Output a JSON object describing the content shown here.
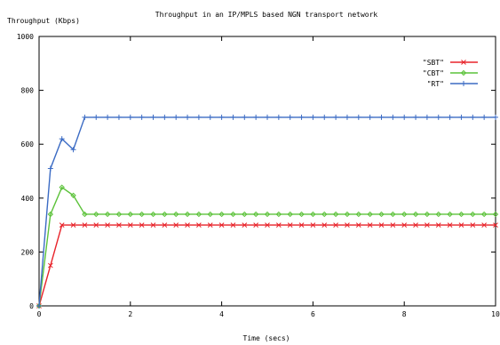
{
  "chart_data": {
    "type": "line",
    "title": "Throughput in an IP/MPLS based NGN transport network",
    "ylabel": "Throughput (Kbps)",
    "xlabel": "Time (secs)",
    "xlim": [
      0,
      10
    ],
    "ylim": [
      0,
      1000
    ],
    "x_ticks": [
      0,
      2,
      4,
      6,
      8,
      10
    ],
    "y_ticks": [
      0,
      200,
      400,
      600,
      800,
      1000
    ],
    "x_tick_labels": [
      "0",
      "2",
      "4",
      "6",
      "8",
      "10"
    ],
    "y_tick_labels": [
      "0",
      "200",
      "400",
      "600",
      "800",
      "1000"
    ],
    "grid": false,
    "legend_position": "top-right",
    "series": [
      {
        "name": "\"SBT\"",
        "color": "#e8232a",
        "marker": "x",
        "x": [
          0,
          0.25,
          0.5,
          0.75,
          1.0,
          1.25,
          1.5,
          1.75,
          2.0,
          2.25,
          2.5,
          2.75,
          3.0,
          3.25,
          3.5,
          3.75,
          4.0,
          4.25,
          4.5,
          4.75,
          5.0,
          5.25,
          5.5,
          5.75,
          6.0,
          6.25,
          6.5,
          6.75,
          7.0,
          7.25,
          7.5,
          7.75,
          8.0,
          8.25,
          8.5,
          8.75,
          9.0,
          9.25,
          9.5,
          9.75,
          10.0
        ],
        "y": [
          0,
          150,
          300,
          300,
          300,
          300,
          300,
          300,
          300,
          300,
          300,
          300,
          300,
          300,
          300,
          300,
          300,
          300,
          300,
          300,
          300,
          300,
          300,
          300,
          300,
          300,
          300,
          300,
          300,
          300,
          300,
          300,
          300,
          300,
          300,
          300,
          300,
          300,
          300,
          300,
          300
        ]
      },
      {
        "name": "\"CBT\"",
        "color": "#5cc23a",
        "marker": "diamond",
        "x": [
          0,
          0.25,
          0.5,
          0.75,
          1.0,
          1.25,
          1.5,
          1.75,
          2.0,
          2.25,
          2.5,
          2.75,
          3.0,
          3.25,
          3.5,
          3.75,
          4.0,
          4.25,
          4.5,
          4.75,
          5.0,
          5.25,
          5.5,
          5.75,
          6.0,
          6.25,
          6.5,
          6.75,
          7.0,
          7.25,
          7.5,
          7.75,
          8.0,
          8.25,
          8.5,
          8.75,
          9.0,
          9.25,
          9.5,
          9.75,
          10.0
        ],
        "y": [
          0,
          340,
          440,
          410,
          340,
          340,
          340,
          340,
          340,
          340,
          340,
          340,
          340,
          340,
          340,
          340,
          340,
          340,
          340,
          340,
          340,
          340,
          340,
          340,
          340,
          340,
          340,
          340,
          340,
          340,
          340,
          340,
          340,
          340,
          340,
          340,
          340,
          340,
          340,
          340,
          340
        ]
      },
      {
        "name": "\"RT\"",
        "color": "#3b6bc4",
        "marker": "plus",
        "x": [
          0,
          0.25,
          0.5,
          0.75,
          1.0,
          1.25,
          1.5,
          1.75,
          2.0,
          2.25,
          2.5,
          2.75,
          3.0,
          3.25,
          3.5,
          3.75,
          4.0,
          4.25,
          4.5,
          4.75,
          5.0,
          5.25,
          5.5,
          5.75,
          6.0,
          6.25,
          6.5,
          6.75,
          7.0,
          7.25,
          7.5,
          7.75,
          8.0,
          8.25,
          8.5,
          8.75,
          9.0,
          9.25,
          9.5,
          9.75,
          10.0
        ],
        "y": [
          0,
          510,
          620,
          580,
          700,
          700,
          700,
          700,
          700,
          700,
          700,
          700,
          700,
          700,
          700,
          700,
          700,
          700,
          700,
          700,
          700,
          700,
          700,
          700,
          700,
          700,
          700,
          700,
          700,
          700,
          700,
          700,
          700,
          700,
          700,
          700,
          700,
          700,
          700,
          700,
          700
        ]
      }
    ]
  }
}
